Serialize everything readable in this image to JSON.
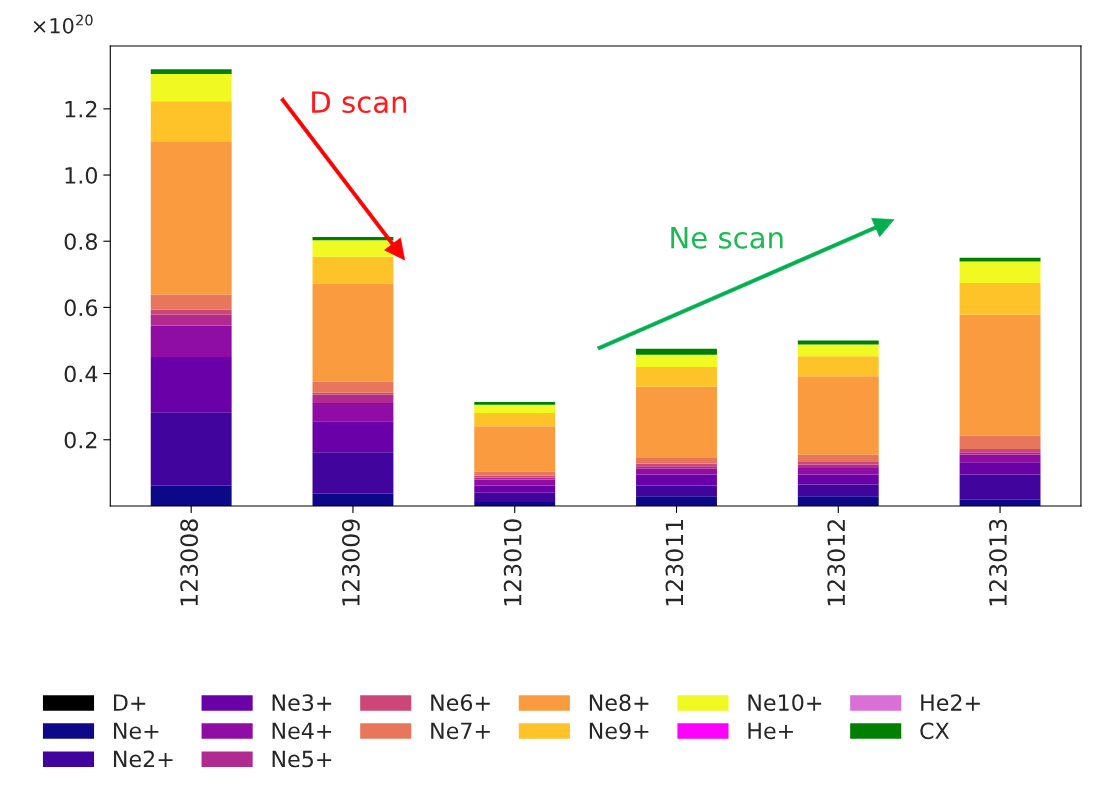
{
  "chart_data": {
    "type": "bar",
    "stacked": true,
    "categories": [
      "123008",
      "123009",
      "123010",
      "123011",
      "123012",
      "123013"
    ],
    "series": [
      {
        "name": "D+",
        "color": "#000000",
        "values": [
          0,
          0,
          0,
          0,
          0,
          0
        ]
      },
      {
        "name": "Ne+",
        "color": "#0d0887",
        "values": [
          0.061,
          0.037,
          0.012,
          0.029,
          0.029,
          0.019
        ]
      },
      {
        "name": "Ne2+",
        "color": "#41049d",
        "values": [
          0.222,
          0.125,
          0.028,
          0.033,
          0.036,
          0.076
        ]
      },
      {
        "name": "Ne3+",
        "color": "#6a00a8",
        "values": [
          0.167,
          0.094,
          0.022,
          0.033,
          0.03,
          0.037
        ]
      },
      {
        "name": "Ne4+",
        "color": "#8f0da4",
        "values": [
          0.095,
          0.055,
          0.018,
          0.017,
          0.02,
          0.023
        ]
      },
      {
        "name": "Ne5+",
        "color": "#b12a90",
        "values": [
          0.033,
          0.026,
          0.006,
          0.008,
          0.01,
          0.007
        ]
      },
      {
        "name": "Ne6+",
        "color": "#cc4778",
        "values": [
          0.015,
          0.005,
          0.005,
          0.008,
          0.01,
          0.01
        ]
      },
      {
        "name": "Ne7+",
        "color": "#e8765a",
        "values": [
          0.046,
          0.033,
          0.012,
          0.017,
          0.02,
          0.041
        ]
      },
      {
        "name": "Ne8+",
        "color": "#f99b3e",
        "values": [
          0.463,
          0.297,
          0.138,
          0.215,
          0.237,
          0.365
        ]
      },
      {
        "name": "Ne9+",
        "color": "#fdc328",
        "values": [
          0.121,
          0.081,
          0.04,
          0.06,
          0.06,
          0.096
        ]
      },
      {
        "name": "Ne10+",
        "color": "#f0f921",
        "values": [
          0.082,
          0.05,
          0.025,
          0.037,
          0.036,
          0.065
        ]
      },
      {
        "name": "He+",
        "color": "#ff00ff",
        "values": [
          0,
          0,
          0,
          0,
          0,
          0
        ]
      },
      {
        "name": "He2+",
        "color": "#da70d6",
        "values": [
          0,
          0,
          0,
          0,
          0,
          0
        ]
      },
      {
        "name": "CX",
        "color": "#008000",
        "values": [
          0.015,
          0.01,
          0.008,
          0.018,
          0.012,
          0.011
        ]
      }
    ],
    "ylim": [
      0,
      1.39
    ],
    "yticks": [
      0.2,
      0.4,
      0.6,
      0.8,
      {
        "value": 1,
        "label": "1.0"
      },
      1.2
    ],
    "annotations": [
      "×10$^{20}$",
      "D scan",
      "Ne scan"
    ],
    "legend": "bottom",
    "grid": false
  }
}
